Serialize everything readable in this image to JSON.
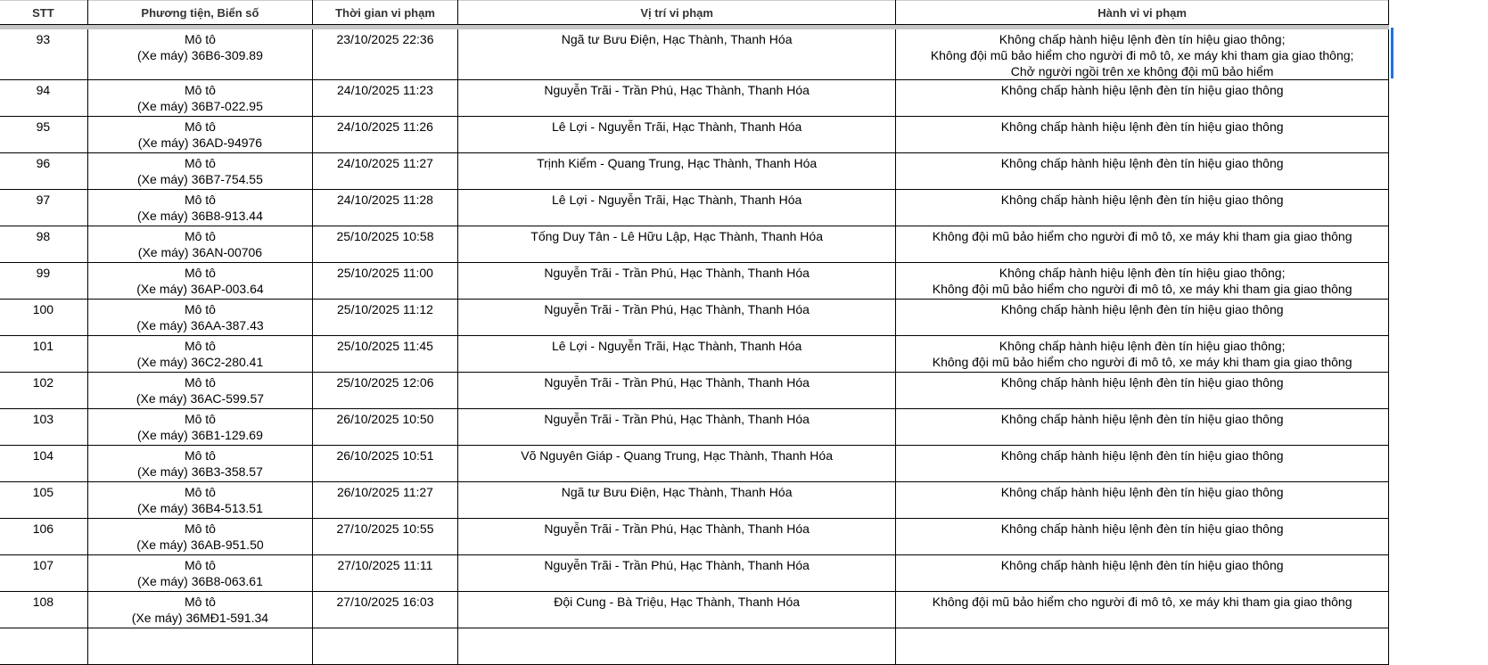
{
  "headers": [
    "STT",
    "Phương tiện, Biển số",
    "Thời gian vi phạm",
    "Vị trí vi phạm",
    "Hành vi vi phạm"
  ],
  "rows": [
    {
      "stt": "93",
      "vehicle": "Mô tô\n(Xe máy) 36B6-309.89",
      "time": "23/10/2025 22:36",
      "location": "Ngã tư Bưu Điện, Hạc Thành, Thanh Hóa",
      "violation": "Không chấp hành hiệu lệnh đèn tín hiệu giao thông;\nKhông đội mũ bảo hiểm cho người đi mô tô, xe máy khi tham gia giao thông;\nChở người ngồi trên xe không đội mũ bảo hiểm"
    },
    {
      "stt": "94",
      "vehicle": "Mô tô\n(Xe máy) 36B7-022.95",
      "time": "24/10/2025 11:23",
      "location": "Nguyễn Trãi - Trần Phú, Hạc Thành, Thanh Hóa",
      "violation": "Không chấp hành hiệu lệnh đèn tín hiệu giao thông"
    },
    {
      "stt": "95",
      "vehicle": "Mô tô\n(Xe máy) 36AD-94976",
      "time": "24/10/2025 11:26",
      "location": "Lê Lợi - Nguyễn Trãi, Hạc Thành, Thanh Hóa",
      "violation": "Không chấp hành hiệu lệnh đèn tín hiệu giao thông"
    },
    {
      "stt": "96",
      "vehicle": "Mô tô\n(Xe máy) 36B7-754.55",
      "time": "24/10/2025 11:27",
      "location": "Trịnh Kiểm - Quang Trung, Hạc Thành, Thanh Hóa",
      "violation": "Không chấp hành hiệu lệnh đèn tín hiệu giao thông"
    },
    {
      "stt": "97",
      "vehicle": "Mô tô\n(Xe máy) 36B8-913.44",
      "time": "24/10/2025 11:28",
      "location": "Lê Lợi - Nguyễn Trãi, Hạc Thành, Thanh Hóa",
      "violation": "Không chấp hành hiệu lệnh đèn tín hiệu giao thông"
    },
    {
      "stt": "98",
      "vehicle": "Mô tô\n(Xe máy) 36AN-00706",
      "time": "25/10/2025 10:58",
      "location": "Tống Duy Tân - Lê Hữu Lập, Hạc Thành, Thanh Hóa",
      "violation": "Không đội mũ bảo hiểm cho người đi mô tô, xe máy khi tham gia giao thông"
    },
    {
      "stt": "99",
      "vehicle": "Mô tô\n(Xe máy) 36AP-003.64",
      "time": "25/10/2025 11:00",
      "location": "Nguyễn Trãi - Trần Phú, Hạc Thành, Thanh Hóa",
      "violation": "Không chấp hành hiệu lệnh đèn tín hiệu giao thông;\nKhông đội mũ bảo hiểm cho người đi mô tô, xe máy khi tham gia giao thông"
    },
    {
      "stt": "100",
      "vehicle": "Mô tô\n(Xe máy) 36AA-387.43",
      "time": "25/10/2025 11:12",
      "location": "Nguyễn Trãi - Trần Phú, Hạc Thành, Thanh Hóa",
      "violation": "Không chấp hành hiệu lệnh đèn tín hiệu giao thông"
    },
    {
      "stt": "101",
      "vehicle": "Mô tô\n(Xe máy) 36C2-280.41",
      "time": "25/10/2025 11:45",
      "location": "Lê Lợi - Nguyễn Trãi, Hạc Thành, Thanh Hóa",
      "violation": "Không chấp hành hiệu lệnh đèn tín hiệu giao thông;\nKhông đội mũ bảo hiểm cho người đi mô tô, xe máy khi tham gia giao thông"
    },
    {
      "stt": "102",
      "vehicle": "Mô tô\n(Xe máy) 36AC-599.57",
      "time": "25/10/2025 12:06",
      "location": "Nguyễn Trãi - Trần Phú, Hạc Thành, Thanh Hóa",
      "violation": "Không chấp hành hiệu lệnh đèn tín hiệu giao thông"
    },
    {
      "stt": "103",
      "vehicle": "Mô tô\n(Xe máy) 36B1-129.69",
      "time": "26/10/2025 10:50",
      "location": "Nguyễn Trãi - Trần Phú, Hạc Thành, Thanh Hóa",
      "violation": "Không chấp hành hiệu lệnh đèn tín hiệu giao thông"
    },
    {
      "stt": "104",
      "vehicle": "Mô tô\n(Xe máy) 36B3-358.57",
      "time": "26/10/2025 10:51",
      "location": "Võ Nguyên Giáp - Quang Trung, Hạc Thành, Thanh Hóa",
      "violation": "Không chấp hành hiệu lệnh đèn tín hiệu giao thông"
    },
    {
      "stt": "105",
      "vehicle": "Mô tô\n(Xe máy) 36B4-513.51",
      "time": "26/10/2025 11:27",
      "location": "Ngã tư Bưu Điện, Hạc Thành, Thanh Hóa",
      "violation": "Không chấp hành hiệu lệnh đèn tín hiệu giao thông"
    },
    {
      "stt": "106",
      "vehicle": "Mô tô\n(Xe máy) 36AB-951.50",
      "time": "27/10/2025 10:55",
      "location": "Nguyễn Trãi - Trần Phú, Hạc Thành, Thanh Hóa",
      "violation": "Không chấp hành hiệu lệnh đèn tín hiệu giao thông"
    },
    {
      "stt": "107",
      "vehicle": "Mô tô\n(Xe máy) 36B8-063.61",
      "time": "27/10/2025 11:11",
      "location": "Nguyễn Trãi - Trần Phú, Hạc Thành, Thanh Hóa",
      "violation": "Không chấp hành hiệu lệnh đèn tín hiệu giao thông"
    },
    {
      "stt": "108",
      "vehicle": "Mô tô\n(Xe máy) 36MĐ1-591.34",
      "time": "27/10/2025 16:03",
      "location": "Đội Cung - Bà Triệu, Hạc Thành, Thanh Hóa",
      "violation": "Không đội mũ bảo hiểm cho người đi mô tô, xe máy khi tham gia giao thông"
    }
  ]
}
